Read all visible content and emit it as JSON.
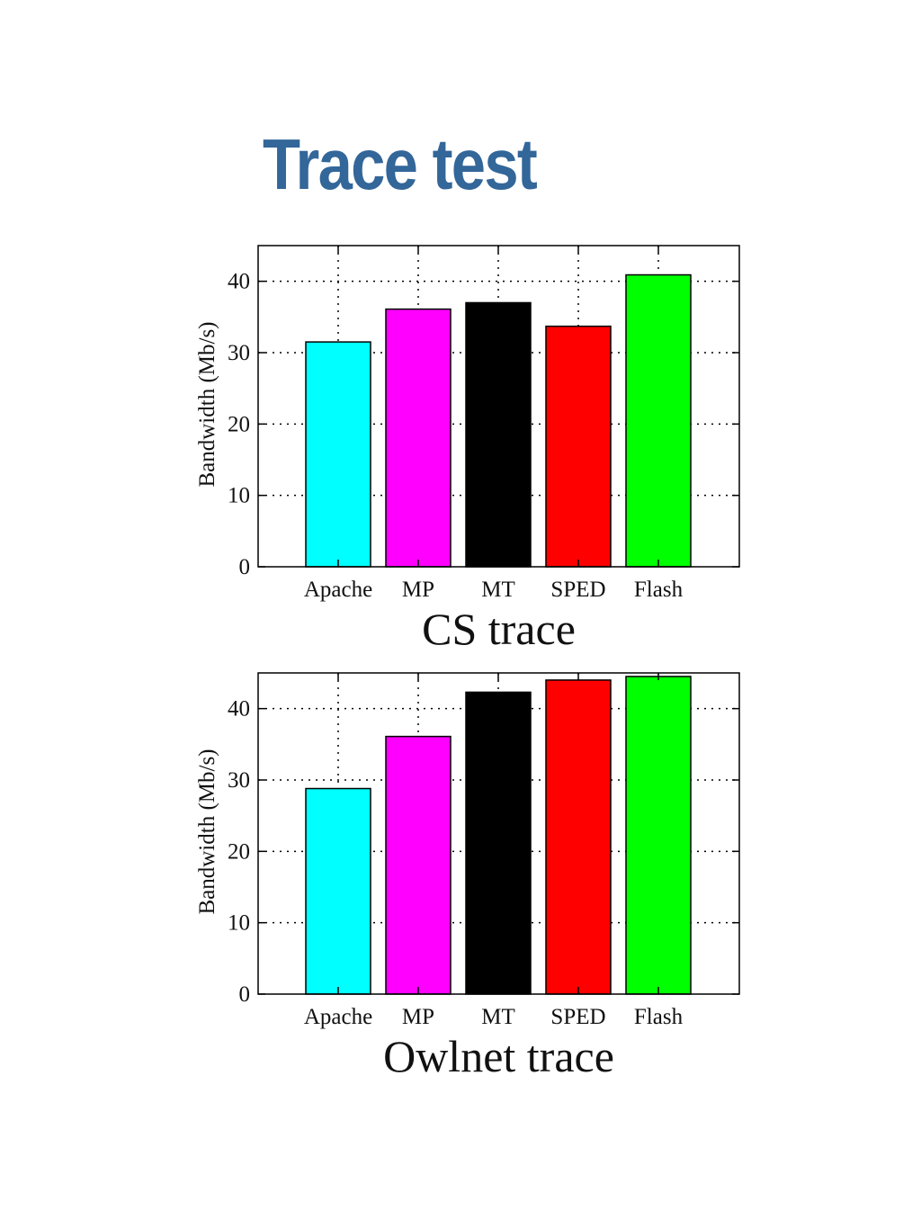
{
  "slide": {
    "title": "Trace test",
    "title_color": "#336699"
  },
  "chart_data": [
    {
      "type": "bar",
      "title": "CS trace",
      "xlabel": "",
      "ylabel": "Bandwidth (Mb/s)",
      "categories": [
        "Apache",
        "MP",
        "MT",
        "SPED",
        "Flash"
      ],
      "values": [
        31.5,
        36.1,
        37.0,
        33.7,
        40.9
      ],
      "colors": [
        "#00ffff",
        "#ff00ff",
        "#000000",
        "#ff0000",
        "#00ff00"
      ],
      "ylim": [
        0,
        45
      ],
      "yticks": [
        0,
        10,
        20,
        30,
        40
      ],
      "grid": true
    },
    {
      "type": "bar",
      "title": "Owlnet trace",
      "xlabel": "",
      "ylabel": "Bandwidth (Mb/s)",
      "categories": [
        "Apache",
        "MP",
        "MT",
        "SPED",
        "Flash"
      ],
      "values": [
        28.8,
        36.1,
        42.3,
        44.0,
        44.5
      ],
      "colors": [
        "#00ffff",
        "#ff00ff",
        "#000000",
        "#ff0000",
        "#00ff00"
      ],
      "ylim": [
        0,
        45
      ],
      "yticks": [
        0,
        10,
        20,
        30,
        40
      ],
      "grid": true
    }
  ]
}
